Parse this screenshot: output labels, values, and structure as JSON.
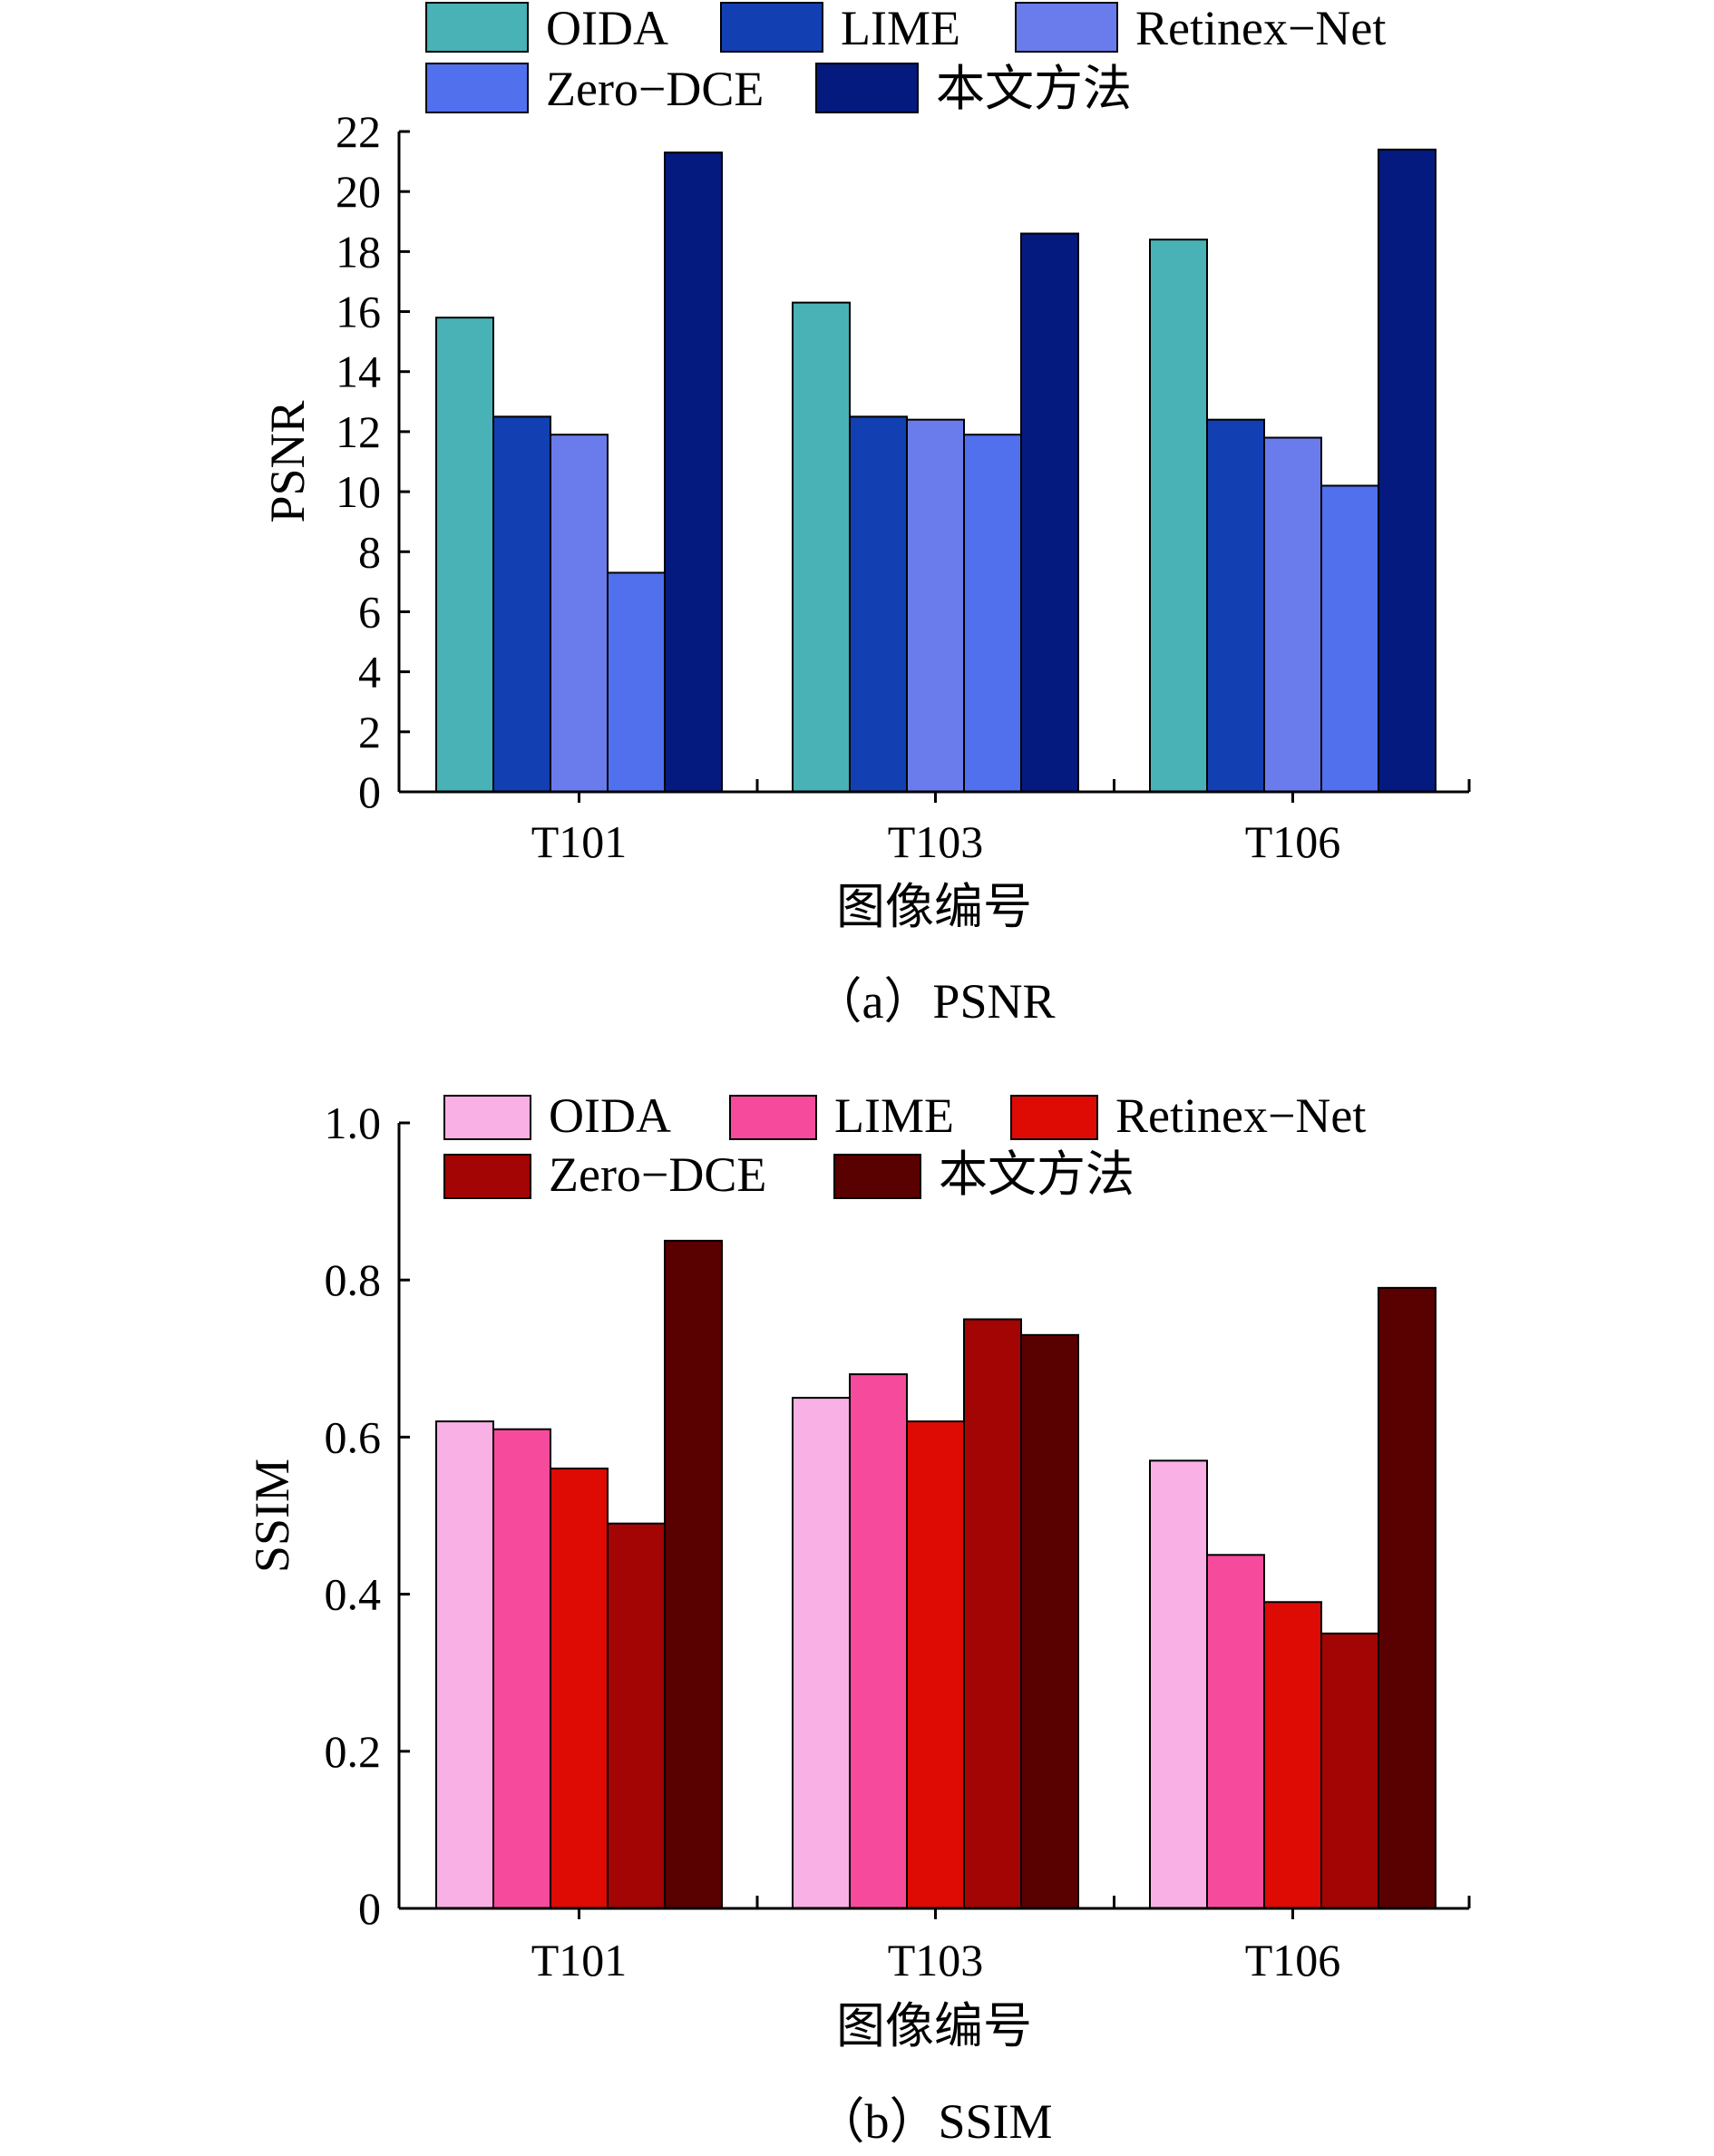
{
  "chart_data": [
    {
      "type": "bar",
      "categories": [
        "T101",
        "T103",
        "T106"
      ],
      "series": [
        {
          "name": "OIDA",
          "values": [
            15.8,
            16.3,
            18.4
          ],
          "color": "#48b2b6"
        },
        {
          "name": "LIME",
          "values": [
            12.5,
            12.5,
            12.4
          ],
          "color": "#1240b2"
        },
        {
          "name": "Retinex−Net",
          "values": [
            11.9,
            12.4,
            11.8
          ],
          "color": "#6a7ceb"
        },
        {
          "name": "Zero−DCE",
          "values": [
            7.3,
            11.9,
            10.2
          ],
          "color": "#5070ee"
        },
        {
          "name": "本文方法",
          "values": [
            21.3,
            18.6,
            21.4
          ],
          "color": "#041a7e"
        }
      ],
      "xlabel": "图像编号",
      "ylabel": "PSNR",
      "ylim": [
        0,
        22
      ],
      "yticks": [
        "0",
        "2",
        "4",
        "6",
        "8",
        "10",
        "12",
        "14",
        "16",
        "18",
        "20",
        "22"
      ],
      "caption": "（a）PSNR",
      "grid": false,
      "legend": "top"
    },
    {
      "type": "bar",
      "categories": [
        "T101",
        "T103",
        "T106"
      ],
      "series": [
        {
          "name": "OIDA",
          "values": [
            0.62,
            0.65,
            0.57
          ],
          "color": "#f9b0e4"
        },
        {
          "name": "LIME",
          "values": [
            0.61,
            0.68,
            0.45
          ],
          "color": "#f64b9c"
        },
        {
          "name": "Retinex−Net",
          "values": [
            0.56,
            0.62,
            0.39
          ],
          "color": "#de0a04"
        },
        {
          "name": "Zero−DCE",
          "values": [
            0.49,
            0.75,
            0.35
          ],
          "color": "#a30404"
        },
        {
          "name": "本文方法",
          "values": [
            0.85,
            0.73,
            0.79
          ],
          "color": "#590000"
        }
      ],
      "xlabel": "图像编号",
      "ylabel": "SSIM",
      "ylim": [
        0,
        1.0
      ],
      "yticks": [
        "0",
        "0.2",
        "0.4",
        "0.6",
        "0.8",
        "1.0"
      ],
      "caption": "（b）SSIM",
      "grid": false,
      "legend": "top"
    }
  ]
}
